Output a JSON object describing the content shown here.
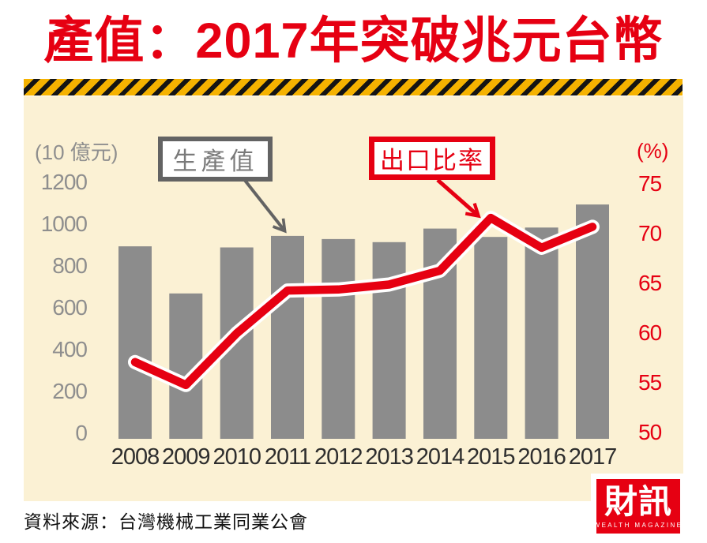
{
  "title": "產值：2017年突破兆元台幣",
  "source": "資料來源：台灣機械工業同業公會",
  "logo": {
    "name": "財訊",
    "subtitle": "WEALTH MAGAZINE"
  },
  "colors": {
    "accent_red": "#E60012",
    "bar_gray": "#8C8C8C",
    "legend_gray": "#636363",
    "axis_gray": "#8E8E8E",
    "cream_bg": "#FBF1D4",
    "hazard_yellow": "#F5B200",
    "hazard_black": "#141414"
  },
  "chart_data": {
    "type": "bar+line combo",
    "categories": [
      "2008",
      "2009",
      "2010",
      "2011",
      "2012",
      "2013",
      "2014",
      "2015",
      "2016",
      "2017"
    ],
    "series": [
      {
        "name": "生產值",
        "type": "bar",
        "axis": "left",
        "unit": "10億元",
        "values": [
          890,
          665,
          885,
          940,
          925,
          910,
          975,
          935,
          980,
          1090
        ]
      },
      {
        "name": "出口比率",
        "type": "line",
        "axis": "right",
        "unit": "%",
        "values": [
          57.0,
          54.7,
          59.9,
          64.2,
          64.3,
          64.8,
          66.2,
          71.5,
          68.5,
          70.6
        ]
      }
    ],
    "left_axis": {
      "label": "(10 億元)",
      "ticks": [
        0,
        200,
        400,
        600,
        800,
        1000,
        1200
      ],
      "range": [
        0,
        1200
      ]
    },
    "right_axis": {
      "label": "(%)",
      "ticks": [
        50,
        55,
        60,
        65,
        70,
        75
      ],
      "range": [
        50,
        75
      ]
    },
    "legend_position": "top callout boxes with arrows",
    "grid": false
  }
}
